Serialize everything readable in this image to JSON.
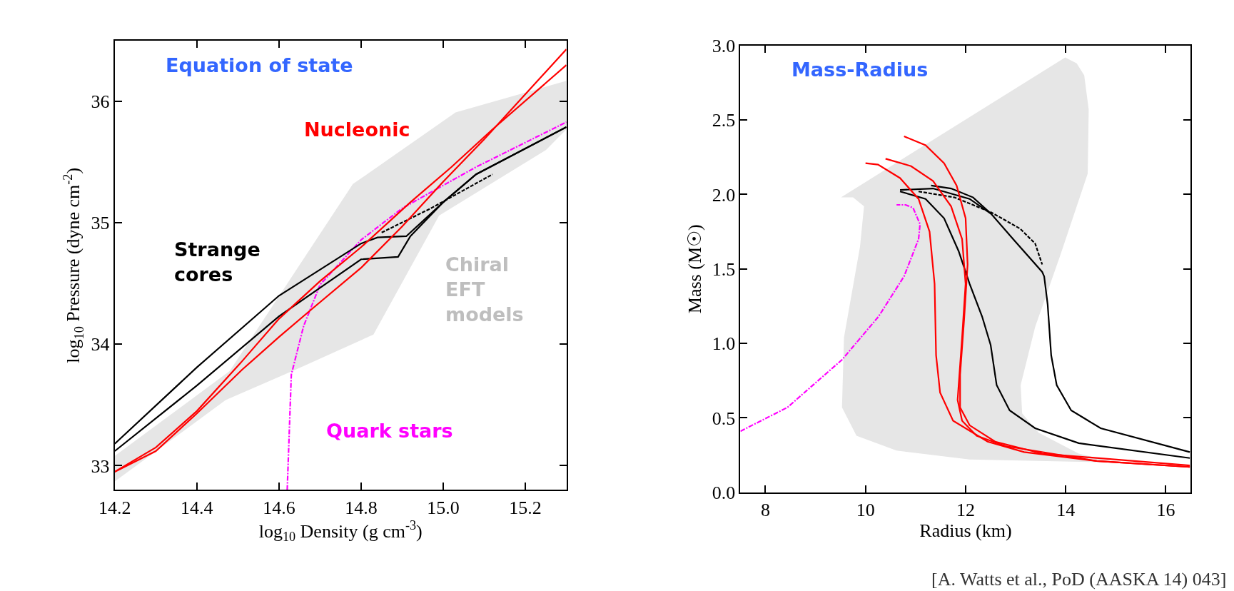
{
  "chart_data": [
    {
      "type": "line",
      "title": "Equation of state",
      "xlabel": "log$_{10}$ Density (g cm$^{-3}$)",
      "ylabel": "log$_{10}$ Pressure (dyne cm$^{-2}$)",
      "xlim": [
        14.2,
        15.3
      ],
      "ylim": [
        32.8,
        36.5
      ],
      "xticks": [
        14.2,
        14.4,
        14.6,
        14.8,
        {
          "value": 15.0,
          "label": "15.0"
        },
        15.2
      ],
      "yticks": [
        33,
        34,
        35,
        36
      ],
      "legend": false,
      "series": [
        {
          "type": "area",
          "name": "Chiral\nEFT\nmodels",
          "color": "#e6e6e6",
          "x": [
            14.2,
            14.48,
            14.78,
            15.03,
            15.3,
            15.3,
            15.25,
            14.99,
            14.83,
            14.64,
            14.47,
            14.2
          ],
          "values": [
            33.08,
            33.78,
            35.32,
            35.91,
            36.17,
            35.77,
            35.6,
            35.06,
            34.08,
            33.79,
            33.54,
            32.87
          ]
        },
        {
          "name": "Quark stars",
          "color": "#ff00ff",
          "line_style": "dashdot",
          "x": [
            14.62,
            14.63,
            14.66,
            14.7,
            14.8,
            14.9,
            15.08,
            15.3
          ],
          "values": [
            32.8,
            33.75,
            34.15,
            34.49,
            34.86,
            35.12,
            35.46,
            35.83
          ]
        },
        {
          "color": "#000000",
          "line_style": "dashed",
          "x": [
            14.85,
            14.97,
            15.12
          ],
          "values": [
            34.92,
            35.12,
            35.4
          ]
        },
        {
          "name": "Strange\ncores",
          "color": "#000000",
          "line_style": "solid",
          "x": [
            14.2,
            14.4,
            14.6,
            14.8,
            14.84,
            14.91,
            15.0,
            15.08,
            15.3
          ],
          "values": [
            33.18,
            33.81,
            34.4,
            34.83,
            34.88,
            34.89,
            35.17,
            35.4,
            35.79
          ]
        },
        {
          "color": "#000000",
          "line_style": "solid",
          "x": [
            14.2,
            14.4,
            14.6,
            14.8,
            14.89,
            14.92,
            15.0,
            15.08,
            15.3
          ],
          "values": [
            33.12,
            33.66,
            34.23,
            34.7,
            34.72,
            34.89,
            35.17,
            35.4,
            35.79
          ]
        },
        {
          "name": "Nucleonic",
          "color": "#ff0000",
          "line_style": "solid",
          "x": [
            14.2,
            14.3,
            14.4,
            14.51,
            14.6,
            14.7,
            14.8,
            14.92,
            15.02,
            15.12,
            15.3
          ],
          "values": [
            32.95,
            33.15,
            33.45,
            33.86,
            34.21,
            34.52,
            34.8,
            35.17,
            35.46,
            35.77,
            36.3
          ]
        },
        {
          "color": "#ff0000",
          "line_style": "solid",
          "x": [
            14.2,
            14.3,
            14.4,
            14.51,
            14.6,
            14.68,
            14.8,
            14.9,
            15.0,
            15.1,
            15.3
          ],
          "values": [
            32.95,
            33.12,
            33.43,
            33.79,
            34.06,
            34.29,
            34.63,
            34.97,
            35.34,
            35.69,
            36.43
          ]
        }
      ]
    },
    {
      "type": "line",
      "title": "Mass-Radius",
      "xlabel": "Radius (km)",
      "ylabel": "Mass (M☉)",
      "xlim": [
        7.5,
        16.5
      ],
      "ylim": [
        0,
        3
      ],
      "xticks": [
        8,
        10,
        12,
        14,
        16
      ],
      "yticks": [
        {
          "value": 0,
          "label": "0.0"
        },
        0.5,
        {
          "value": 1,
          "label": "1.0"
        },
        1.5,
        {
          "value": 2,
          "label": "2.0"
        },
        2.5,
        {
          "value": 3,
          "label": "3.0"
        }
      ],
      "legend": false,
      "series": [
        {
          "type": "area",
          "color": "#e6e6e6",
          "x": [
            9.51,
            13.99,
            14.22,
            14.37,
            14.46,
            14.44,
            13.9,
            13.39,
            13.1,
            13.13,
            13.46,
            14.26,
            14.99,
            12.08,
            10.62,
            9.82,
            9.53,
            9.57,
            9.89,
            9.97,
            9.75,
            9.51
          ],
          "values": [
            1.98,
            2.92,
            2.88,
            2.8,
            2.57,
            2.14,
            1.6,
            1.11,
            0.72,
            0.53,
            0.4,
            0.26,
            0.2,
            0.22,
            0.28,
            0.38,
            0.57,
            1.04,
            1.65,
            1.92,
            1.98,
            1.98
          ]
        },
        {
          "color": "#ff00ff",
          "line_style": "dashdot",
          "x": [
            7.5,
            8.44,
            9.53,
            10.26,
            10.77,
            11.06,
            11.09,
            10.95,
            10.8,
            10.62
          ],
          "values": [
            0.41,
            0.57,
            0.89,
            1.18,
            1.45,
            1.7,
            1.8,
            1.91,
            1.93,
            1.93
          ]
        },
        {
          "color": "#000000",
          "line_style": "dashed",
          "x": [
            11.06,
            11.78,
            12.51,
            13.09,
            13.39,
            13.53
          ],
          "values": [
            2.02,
            1.98,
            1.88,
            1.77,
            1.67,
            1.53
          ]
        },
        {
          "color": "#000000",
          "line_style": "solid",
          "x": [
            10.69,
            11.2,
            11.57,
            11.86,
            12.08,
            12.33,
            12.5,
            12.62,
            12.88,
            13.39,
            14.26,
            16.48
          ],
          "values": [
            2.02,
            1.97,
            1.84,
            1.62,
            1.4,
            1.18,
            0.99,
            0.72,
            0.55,
            0.43,
            0.33,
            0.23
          ]
        },
        {
          "color": "#000000",
          "line_style": "solid",
          "x": [
            10.69,
            11.35,
            12.08,
            12.51,
            12.95,
            13.53,
            13.57,
            13.64,
            13.71,
            13.82,
            14.11,
            14.7,
            16.48
          ],
          "values": [
            2.03,
            2.04,
            1.97,
            1.87,
            1.7,
            1.48,
            1.45,
            1.26,
            0.92,
            0.72,
            0.55,
            0.43,
            0.27
          ]
        },
        {
          "color": "#000000",
          "line_style": "solid",
          "x": [
            11.31,
            11.71,
            12.15,
            12.51
          ],
          "values": [
            2.06,
            2.04,
            1.98,
            1.87
          ]
        },
        {
          "color": "#ff0000",
          "line_style": "solid",
          "x": [
            10.0,
            10.25,
            10.69,
            11.06,
            11.28,
            11.38,
            11.41,
            11.49,
            11.75,
            12.44,
            13.17,
            14.62,
            16.48
          ],
          "values": [
            2.21,
            2.2,
            2.11,
            1.97,
            1.75,
            1.4,
            0.92,
            0.67,
            0.48,
            0.34,
            0.27,
            0.21,
            0.17
          ]
        },
        {
          "color": "#ff0000",
          "line_style": "solid",
          "x": [
            10.4,
            10.91,
            11.35,
            11.71,
            11.93,
            12.0,
            11.93,
            11.84,
            11.93,
            12.22,
            12.8,
            14.62,
            16.48
          ],
          "values": [
            2.24,
            2.19,
            2.09,
            1.92,
            1.7,
            1.4,
            1.04,
            0.62,
            0.48,
            0.38,
            0.31,
            0.21,
            0.17
          ]
        },
        {
          "color": "#ff0000",
          "line_style": "solid",
          "x": [
            10.77,
            11.2,
            11.57,
            11.82,
            12.0,
            12.04,
            11.97,
            11.89,
            11.89,
            12.08,
            12.59,
            13.53,
            16.48
          ],
          "values": [
            2.39,
            2.33,
            2.21,
            2.06,
            1.84,
            1.53,
            1.16,
            0.79,
            0.57,
            0.45,
            0.34,
            0.26,
            0.18
          ]
        }
      ],
      "annotations": [
        "[A. Watts et al., PoD (AASKA 14) 043]"
      ]
    }
  ]
}
